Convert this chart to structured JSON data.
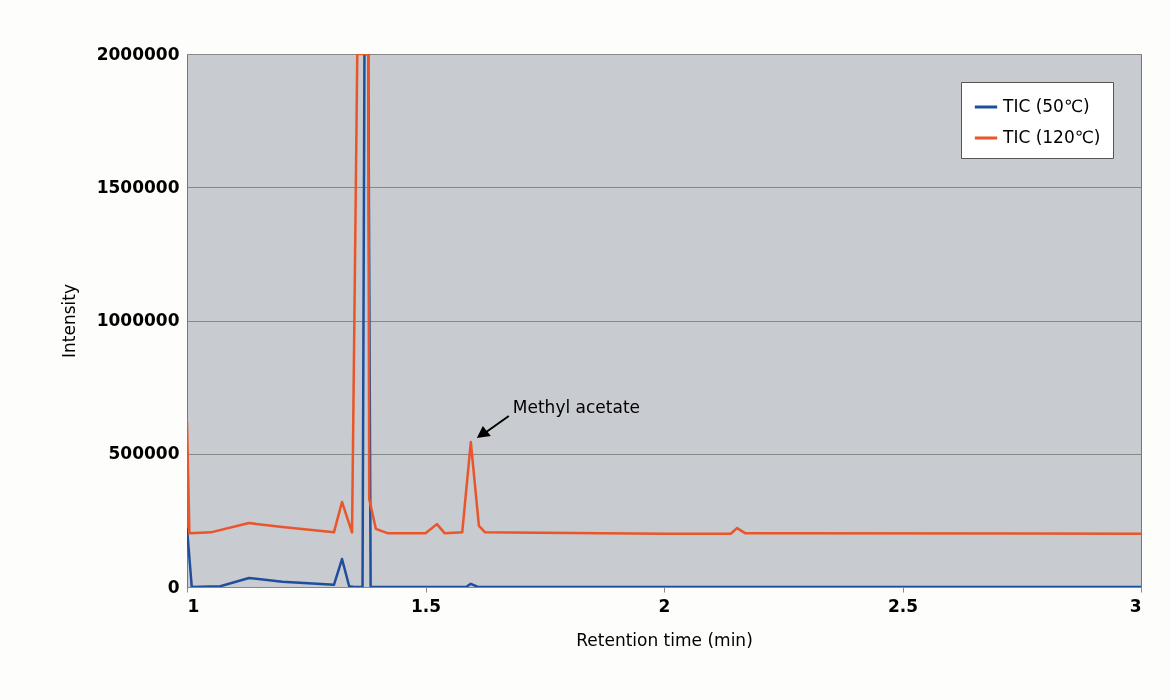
{
  "chart_data": {
    "type": "line",
    "xlabel": "Retention time (min)",
    "ylabel": "Intensity",
    "xlim": [
      1,
      3
    ],
    "xticks": [
      1,
      1.5,
      2,
      2.5,
      3
    ],
    "ylim": [
      0,
      2000000
    ],
    "yticks": [
      0,
      500000,
      1000000,
      1500000,
      2000000
    ],
    "grid": "y",
    "legend": "top right",
    "marker": "none",
    "line_style": "solid",
    "series": [
      {
        "name": "TIC (50℃)",
        "color": "#1f4e9c",
        "x": [
          1,
          1.01,
          1.07,
          1.13,
          1.2,
          1.308,
          1.325,
          1.34,
          1.35,
          1.368,
          1.372,
          1.38,
          1.385,
          1.5,
          1.585,
          1.595,
          1.61,
          2,
          3
        ],
        "values": [
          220000,
          0,
          3000,
          34000,
          20000,
          8000,
          105000,
          3000,
          0,
          0,
          2000000,
          2000000,
          0,
          0,
          0,
          12000,
          0,
          0,
          0
        ]
      },
      {
        "name": "TIC (120℃)",
        "color": "#e8562a",
        "x": [
          1,
          1.005,
          1.05,
          1.13,
          1.2,
          1.308,
          1.325,
          1.346,
          1.357,
          1.362,
          1.38,
          1.382,
          1.396,
          1.42,
          1.5,
          1.524,
          1.54,
          1.577,
          1.595,
          1.612,
          1.625,
          2,
          2.14,
          2.153,
          2.17,
          3
        ],
        "values": [
          620000,
          202000,
          205000,
          240000,
          225000,
          205000,
          319000,
          205000,
          2000000,
          2000000,
          2000000,
          330000,
          218000,
          202000,
          202000,
          236000,
          202000,
          205000,
          544000,
          229000,
          205000,
          200000,
          200000,
          221000,
          202000,
          200000
        ]
      }
    ],
    "annotations": [
      {
        "text": "Methyl acetate",
        "x": 1.595,
        "y": 544000
      }
    ]
  }
}
